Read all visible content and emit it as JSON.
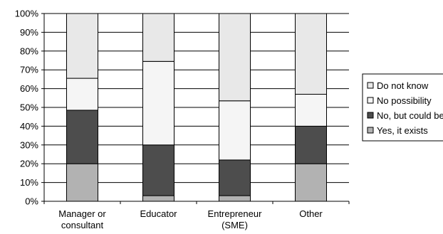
{
  "chart_data": {
    "type": "bar",
    "stacked": true,
    "grid": true,
    "legend_position": "right",
    "ylim": [
      0,
      100
    ],
    "y_ticks": [
      "0%",
      "10%",
      "20%",
      "30%",
      "40%",
      "50%",
      "60%",
      "70%",
      "80%",
      "90%",
      "100%"
    ],
    "categories": [
      [
        "Manager or",
        "consultant"
      ],
      [
        "Educator"
      ],
      [
        "Entrepreneur",
        "(SME)"
      ],
      [
        "Other"
      ]
    ],
    "series": [
      {
        "name": "Yes, it exists",
        "color": "#b2b2b2",
        "values": [
          20,
          3,
          3,
          20
        ]
      },
      {
        "name": "No, but could be",
        "color": "#4d4d4d",
        "values": [
          28.5,
          27,
          19,
          20
        ]
      },
      {
        "name": "No possibility",
        "color": "#f5f5f5",
        "values": [
          17,
          44.5,
          31.5,
          17
        ]
      },
      {
        "name": "Do not know",
        "color": "#e8e8e8",
        "values": [
          34.5,
          25.5,
          46.5,
          43
        ]
      }
    ],
    "legend_order": [
      "Do not know",
      "No possibility",
      "No, but could be",
      "Yes, it exists"
    ]
  }
}
